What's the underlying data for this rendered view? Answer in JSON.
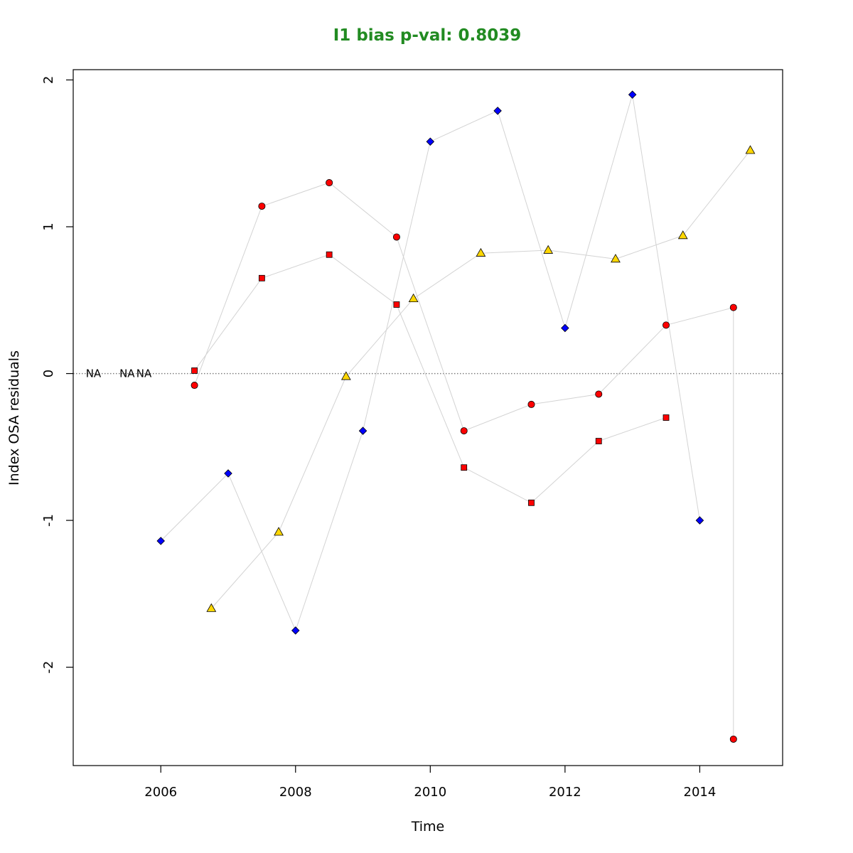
{
  "title_color": "#228B22",
  "chart_data": {
    "type": "scatter",
    "title": "I1 bias p-val: 0.8039",
    "xlabel": "Time",
    "ylabel": "Index OSA residuals",
    "xlim": [
      2004.7,
      2015.23
    ],
    "ylim": [
      -2.67,
      2.07
    ],
    "x_ticks": [
      2006,
      2008,
      2010,
      2012,
      2014
    ],
    "y_ticks": [
      -2,
      -1,
      0,
      1,
      2
    ],
    "reference_line": {
      "y": 0,
      "style": "dotted",
      "color": "#777777"
    },
    "connector_color": "#d3d3d3",
    "na_labels": [
      {
        "x": 2005.0,
        "text": "NA"
      },
      {
        "x": 2005.5,
        "text": "NA"
      },
      {
        "x": 2005.75,
        "text": "NA"
      }
    ],
    "series": [
      {
        "marker": "diamond",
        "fill": "#0000ff",
        "points": [
          [
            2006.0,
            -1.14
          ],
          [
            2007.0,
            -0.68
          ],
          [
            2008.0,
            -1.75
          ],
          [
            2009.0,
            -0.39
          ],
          [
            2010.0,
            1.58
          ],
          [
            2011.0,
            1.79
          ],
          [
            2012.0,
            0.31
          ],
          [
            2013.0,
            1.9
          ],
          [
            2014.0,
            -1.0
          ]
        ]
      },
      {
        "marker": "circle",
        "fill": "#ff0000",
        "points": [
          [
            2006.5,
            -0.08
          ],
          [
            2007.5,
            1.14
          ],
          [
            2008.5,
            1.3
          ],
          [
            2009.5,
            0.93
          ],
          [
            2010.5,
            -0.39
          ],
          [
            2011.5,
            -0.21
          ],
          [
            2012.5,
            -0.14
          ],
          [
            2013.5,
            0.33
          ],
          [
            2014.5,
            0.45
          ],
          [
            2014.5,
            -2.49
          ]
        ]
      },
      {
        "marker": "square",
        "fill": "#ff0000",
        "points": [
          [
            2006.5,
            0.02
          ],
          [
            2007.5,
            0.65
          ],
          [
            2008.5,
            0.81
          ],
          [
            2009.5,
            0.47
          ],
          [
            2010.5,
            -0.64
          ],
          [
            2011.5,
            -0.88
          ],
          [
            2012.5,
            -0.46
          ],
          [
            2013.5,
            -0.3
          ]
        ]
      },
      {
        "marker": "triangle",
        "fill": "#ffd700",
        "points": [
          [
            2006.75,
            -1.6
          ],
          [
            2007.75,
            -1.08
          ],
          [
            2008.75,
            -0.02
          ],
          [
            2009.75,
            0.51
          ],
          [
            2010.75,
            0.82
          ],
          [
            2011.75,
            0.84
          ],
          [
            2012.75,
            0.78
          ],
          [
            2013.75,
            0.94
          ],
          [
            2014.75,
            1.52
          ]
        ]
      }
    ]
  }
}
